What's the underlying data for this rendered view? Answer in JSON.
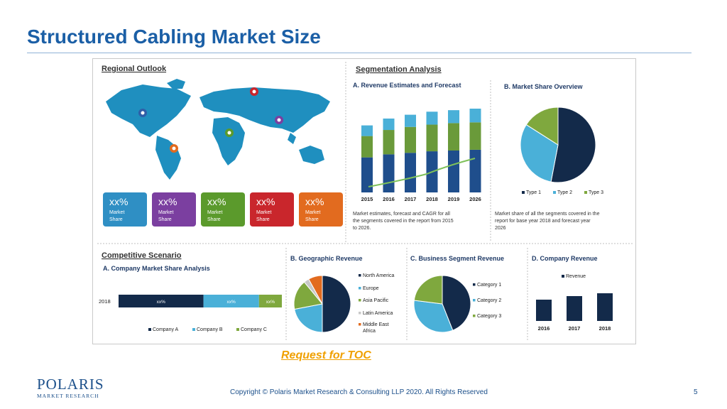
{
  "slide": {
    "title": "Structured Cabling Market Size",
    "toc_link": "Request for TOC",
    "footer": "Copyright © Polaris Market Research & Consulting LLP 2020. All Rights Reserved",
    "page_number": "5",
    "logo": {
      "main": "POLARIS",
      "sub": "MARKET RESEARCH"
    }
  },
  "infographic": {
    "regional": {
      "title": "Regional Outlook",
      "cards": [
        {
          "value": "xx%",
          "line1": "Market",
          "line2": "Share",
          "color": "#2f8fc4"
        },
        {
          "value": "xx%",
          "line1": "Market",
          "line2": "Share",
          "color": "#7b3fa0"
        },
        {
          "value": "xx%",
          "line1": "Market",
          "line2": "Share",
          "color": "#5b9a2c"
        },
        {
          "value": "xx%",
          "line1": "Market",
          "line2": "Share",
          "color": "#c9262c"
        },
        {
          "value": "xx%",
          "line1": "Market",
          "line2": "Share",
          "color": "#e26b1f"
        }
      ]
    },
    "segmentation": {
      "title": "Segmentation Analysis",
      "a_title": "A. Revenue Estimates and Forecast",
      "a_caption": [
        "Market estimates, forecast and CAGR for all",
        "the segments covered in the report from 2015",
        "to 2026."
      ],
      "b_title": "B. Market Share Overview",
      "b_caption": [
        "Market share of all the segments covered in the",
        "report for base year 2018 and forecast year",
        "2026"
      ]
    },
    "competitive": {
      "title": "Competitive Scenario",
      "a_title": "A. Company Market Share Analysis",
      "b_title": "B. Geographic Revenue",
      "c_title": "C. Business Segment Revenue",
      "d_title": "D. Company Revenue"
    }
  },
  "chart_data": [
    {
      "type": "bar",
      "title": "A. Revenue Estimates and Forecast",
      "categories": [
        "2015",
        "2016",
        "2017",
        "2018",
        "2019",
        "2026"
      ],
      "series": [
        {
          "values": [
            46,
            50,
            52,
            54,
            55,
            56
          ],
          "color": "#1f4e8c"
        },
        {
          "values": [
            28,
            32,
            34,
            35,
            36,
            36
          ],
          "color": "#6a9a3a"
        },
        {
          "values": [
            14,
            15,
            16,
            17,
            17,
            18
          ],
          "color": "#4ab0d8"
        }
      ],
      "trend_line": true
    },
    {
      "type": "pie",
      "title": "B. Market Share Overview",
      "labels": [
        "Type 1",
        "Type 2",
        "Type 3"
      ],
      "values": [
        53,
        31,
        16
      ],
      "colors": [
        "#132a4a",
        "#4ab0d8",
        "#7fa83e"
      ]
    },
    {
      "type": "bar",
      "title": "A. Company Market Share Analysis",
      "categories": [
        "2018"
      ],
      "series": [
        {
          "name": "Company A",
          "values": [
            52
          ],
          "label": "xx%",
          "color": "#132a4a"
        },
        {
          "name": "Company B",
          "values": [
            34
          ],
          "label": "xx%",
          "color": "#4ab0d8"
        },
        {
          "name": "Company C",
          "values": [
            14
          ],
          "label": "xx%",
          "color": "#7fa83e"
        }
      ],
      "orientation": "horizontal",
      "stacked": true
    },
    {
      "type": "pie",
      "title": "B. Geographic Revenue",
      "labels": [
        "North America",
        "Europe",
        "Asia Pacific",
        "Latin America",
        "Middle East Africa"
      ],
      "values": [
        50,
        22,
        17,
        3,
        8
      ],
      "colors": [
        "#132a4a",
        "#4ab0d8",
        "#7fa83e",
        "#c8c8c8",
        "#e26b1f"
      ]
    },
    {
      "type": "pie",
      "title": "C. Business Segment Revenue",
      "labels": [
        "Category 1",
        "Category 2",
        "Category 3"
      ],
      "values": [
        44,
        33,
        23
      ],
      "colors": [
        "#132a4a",
        "#4ab0d8",
        "#7fa83e"
      ]
    },
    {
      "type": "bar",
      "title": "D. Company Revenue",
      "categories": [
        "2016",
        "2017",
        "2018"
      ],
      "series": [
        {
          "name": "Revenue",
          "values": [
            30,
            35,
            39
          ],
          "color": "#132a4a"
        }
      ]
    }
  ]
}
